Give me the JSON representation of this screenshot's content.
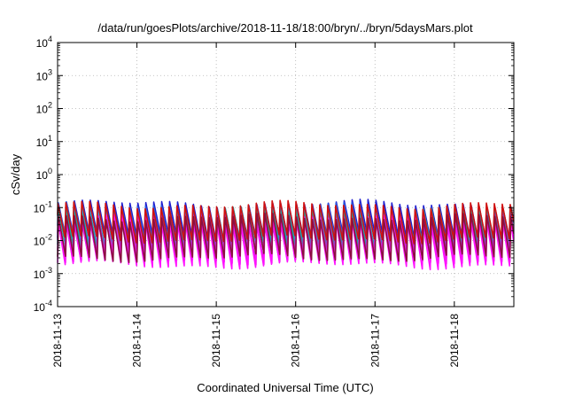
{
  "chart_data": {
    "type": "line",
    "title": "/data/run/goesPlots/archive/2018-11-18/18:00/bryn/../bryn/5daysMars.plot",
    "xlabel": "Coordinated Universal Time (UTC)",
    "ylabel": "cSv/day",
    "y_scale": "log",
    "ylim": [
      0.0001,
      10000
    ],
    "y_ticks": [
      {
        "value": 0.0001,
        "base": "10",
        "exp": "-4"
      },
      {
        "value": 0.001,
        "base": "10",
        "exp": "-3"
      },
      {
        "value": 0.01,
        "base": "10",
        "exp": "-2"
      },
      {
        "value": 0.1,
        "base": "10",
        "exp": "-1"
      },
      {
        "value": 1,
        "base": "10",
        "exp": "0"
      },
      {
        "value": 10,
        "base": "10",
        "exp": "1"
      },
      {
        "value": 100,
        "base": "10",
        "exp": "2"
      },
      {
        "value": 1000,
        "base": "10",
        "exp": "3"
      },
      {
        "value": 10000,
        "base": "10",
        "exp": "4"
      }
    ],
    "xlim": [
      "2018-11-13T00:00",
      "2018-11-18T18:00"
    ],
    "x_ticks": [
      "2018-11-13",
      "2018-11-14",
      "2018-11-15",
      "2018-11-16",
      "2018-11-17",
      "2018-11-18"
    ],
    "grid": true,
    "legend": "none",
    "approx_cycles_per_day": 10,
    "series": [
      {
        "color": "#1f1fd0",
        "peak": 0.13,
        "trough": 0.012
      },
      {
        "color": "#2b60e0",
        "peak": 0.11,
        "trough": 0.01
      },
      {
        "color": "#1b9fd8",
        "peak": 0.09,
        "trough": 0.008
      },
      {
        "color": "#1aa8a0",
        "peak": 0.075,
        "trough": 0.0065
      },
      {
        "color": "#8a3fc0",
        "peak": 0.06,
        "trough": 0.005
      },
      {
        "color": "#c020d0",
        "peak": 0.05,
        "trough": 0.0035
      },
      {
        "color": "#e81ce8",
        "peak": 0.045,
        "trough": 0.0025
      },
      {
        "color": "#ff10ff",
        "peak": 0.04,
        "trough": 0.0018
      },
      {
        "color": "#d01010",
        "peak": 0.12,
        "trough": 0.011
      },
      {
        "color": "#8b1040",
        "peak": 0.05,
        "trough": 0.003
      }
    ]
  }
}
